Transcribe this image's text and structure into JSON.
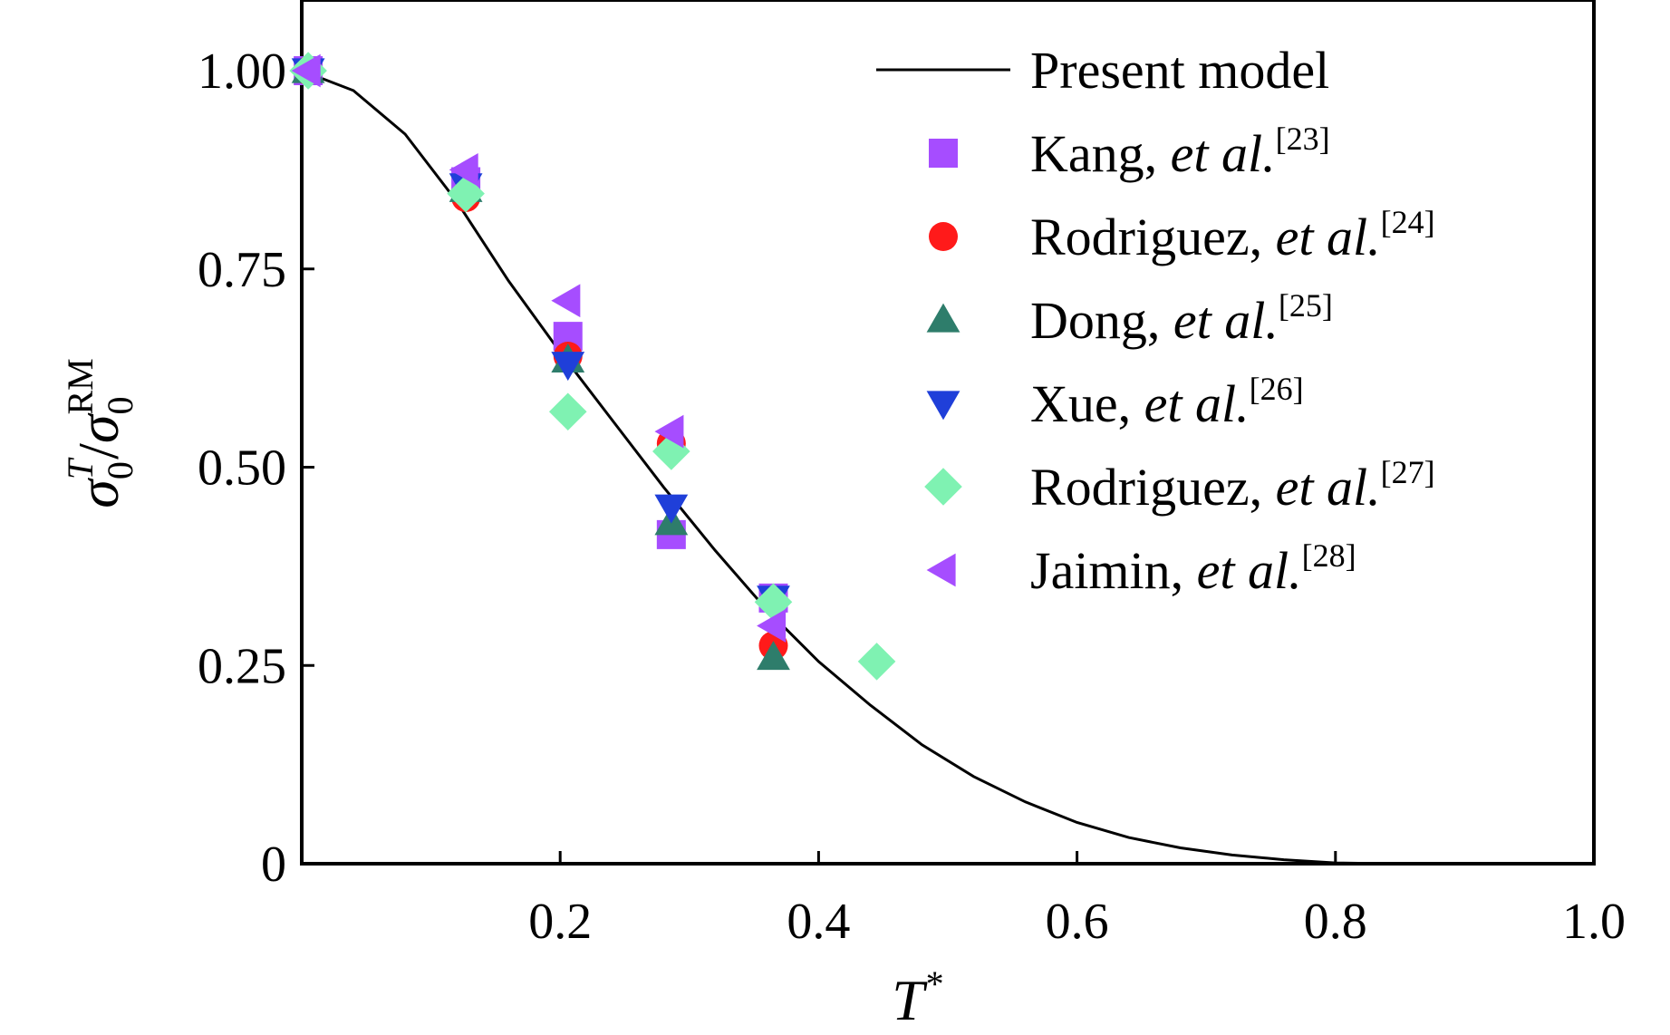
{
  "chart_data": {
    "type": "scatter",
    "xlabel": "T*",
    "ylabel": "σ0T/σ0RM",
    "xlim": [
      0,
      1.0
    ],
    "ylim": [
      0,
      1.1
    ],
    "x_ticks": [
      {
        "value": 0.2,
        "label": "0.2"
      },
      {
        "value": 0.4,
        "label": "0.4"
      },
      {
        "value": 0.6,
        "label": "0.6"
      },
      {
        "value": 0.8,
        "label": "0.8"
      },
      {
        "value": 1.0,
        "label": "1.0"
      }
    ],
    "y_ticks": [
      {
        "value": 0,
        "label": "0"
      },
      {
        "value": 0.25,
        "label": "0.25"
      },
      {
        "value": 0.5,
        "label": "0.50"
      },
      {
        "value": 0.75,
        "label": "0.75"
      },
      {
        "value": 1.0,
        "label": "1.00"
      }
    ],
    "legend_position": "top-right",
    "line": {
      "name": "Present model",
      "color": "#000000",
      "x": [
        0,
        0.04,
        0.08,
        0.12,
        0.16,
        0.2,
        0.24,
        0.28,
        0.32,
        0.36,
        0.4,
        0.44,
        0.48,
        0.52,
        0.56,
        0.6,
        0.64,
        0.68,
        0.72,
        0.76,
        0.8,
        0.84
      ],
      "y": [
        1.0,
        0.975,
        0.92,
        0.835,
        0.735,
        0.645,
        0.56,
        0.475,
        0.395,
        0.32,
        0.255,
        0.2,
        0.15,
        0.11,
        0.078,
        0.052,
        0.033,
        0.02,
        0.011,
        0.005,
        0.001,
        0.0
      ]
    },
    "series": [
      {
        "name": "Kang, ",
        "ref": "[23]",
        "marker": "square",
        "color": "#a64dff",
        "x": [
          0.005,
          0.127,
          0.206,
          0.286,
          0.365
        ],
        "y": [
          1.0,
          0.86,
          0.665,
          0.415,
          0.335
        ]
      },
      {
        "name": "Rodriguez, ",
        "ref": "[24]",
        "marker": "circle",
        "color": "#ff1a1a",
        "x": [
          0.005,
          0.127,
          0.206,
          0.286,
          0.365
        ],
        "y": [
          1.0,
          0.84,
          0.64,
          0.53,
          0.275
        ]
      },
      {
        "name": "Dong, ",
        "ref": "[25]",
        "marker": "triangle-up",
        "color": "#2e7d6b",
        "x": [
          0.005,
          0.127,
          0.206,
          0.286,
          0.365
        ],
        "y": [
          1.0,
          0.85,
          0.635,
          0.43,
          0.26
        ]
      },
      {
        "name": "Xue, ",
        "ref": "[26]",
        "marker": "triangle-down",
        "color": "#1f3fd9",
        "x": [
          0.005,
          0.127,
          0.206,
          0.286,
          0.365
        ],
        "y": [
          1.0,
          0.855,
          0.63,
          0.45,
          0.335
        ]
      },
      {
        "name": "Rodriguez, ",
        "ref": "[27]",
        "marker": "diamond",
        "color": "#7ff2b2",
        "x": [
          0.005,
          0.127,
          0.206,
          0.286,
          0.365,
          0.445
        ],
        "y": [
          1.0,
          0.845,
          0.57,
          0.52,
          0.33,
          0.255
        ]
      },
      {
        "name": "Jaimin, ",
        "ref": "[28]",
        "marker": "triangle-left",
        "color": "#a64dff",
        "x": [
          0.005,
          0.127,
          0.206,
          0.286,
          0.365
        ],
        "y": [
          1.0,
          0.875,
          0.71,
          0.545,
          0.3
        ]
      }
    ],
    "legend_italic": "et al."
  }
}
